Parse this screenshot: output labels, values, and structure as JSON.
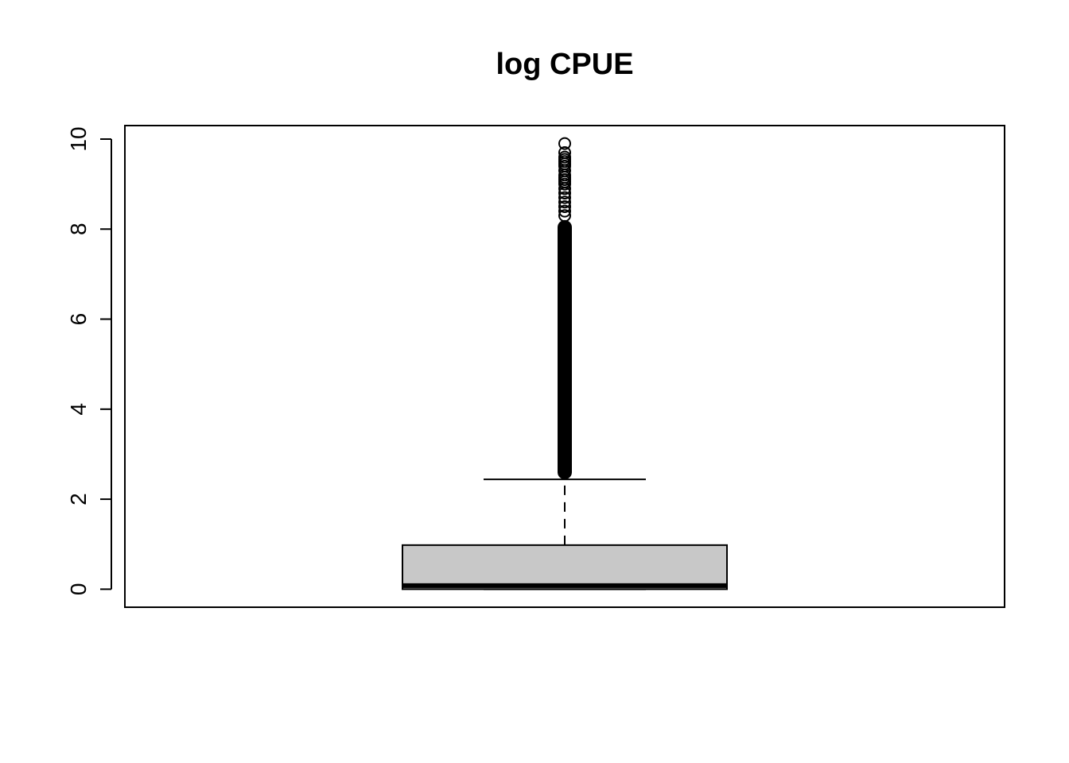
{
  "chart_data": {
    "type": "boxplot",
    "title": "log CPUE",
    "xlabel": "",
    "ylabel": "",
    "ylim": [
      -0.4,
      10.3
    ],
    "yticks": [
      0,
      2,
      4,
      6,
      8,
      10
    ],
    "ytick_labels": [
      "0",
      "2",
      "4",
      "6",
      "8",
      "10"
    ],
    "grid": false,
    "legend": "none",
    "box": {
      "min": 0,
      "q1": 0,
      "median": 0.08,
      "q3": 0.98,
      "whisker_high": 2.44,
      "fill": "#c8c8c8",
      "outlier_min": 2.44,
      "outlier_max": 9.9,
      "outliers_sparse": [
        8.3,
        8.4,
        8.5,
        8.6,
        8.7,
        8.8,
        8.9,
        9.0,
        9.05,
        9.1,
        9.15,
        9.2,
        9.3,
        9.4,
        9.45,
        9.5,
        9.55,
        9.6,
        9.7,
        9.9
      ]
    }
  }
}
